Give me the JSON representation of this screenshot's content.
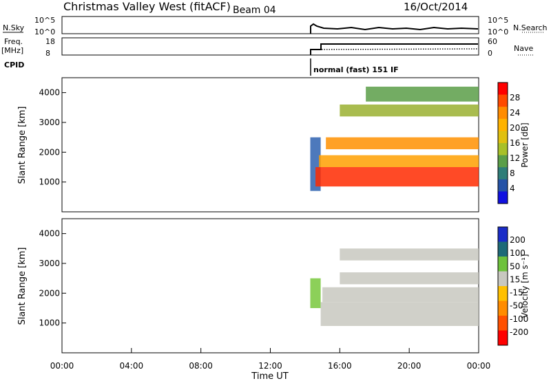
{
  "header": {
    "station": "Christmas Valley West (fitACF)",
    "beam": "Beam 04",
    "date": "16/Oct/2014"
  },
  "top_panels": {
    "nsky_label": "N.Sky",
    "nsky_ticks": [
      "10^5",
      "10^0"
    ],
    "nsearch_label": "N.Search",
    "nsearch_ticks": [
      "10^5",
      "10^0"
    ],
    "freq_label": "Freq.",
    "freq_unit": "[MHz]",
    "freq_ticks": [
      "18",
      "8"
    ],
    "nave_label": "Nave",
    "nave_ticks": [
      "60",
      "0"
    ],
    "cpid_label": "CPID",
    "cpid_text": "normal (fast) 151 IF"
  },
  "chart_data": [
    {
      "type": "heatmap",
      "name": "power",
      "ylabel": "Slant Range [km]",
      "xlabel": "",
      "yticks": [
        "1000",
        "2000",
        "3000",
        "4000"
      ],
      "ylim": [
        0,
        4500
      ],
      "xlim": [
        0,
        24
      ],
      "colorbar": {
        "label": "Power [dB]",
        "ticks": [
          "28",
          "24",
          "20",
          "16",
          "12",
          "8",
          "4"
        ],
        "colors": [
          "#ff0000",
          "#ff4a00",
          "#ff8c00",
          "#ffb300",
          "#e0c010",
          "#a8c028",
          "#5a9e48",
          "#2e7d78",
          "#2452a6",
          "#1010e0"
        ]
      },
      "bands": [
        {
          "x0": 14.3,
          "x1": 14.9,
          "y0": 700,
          "y1": 2500,
          "color": "#2e62b0"
        },
        {
          "x0": 14.6,
          "x1": 24.0,
          "y0": 850,
          "y1": 1500,
          "color": "#ff2a00"
        },
        {
          "x0": 14.8,
          "x1": 24.0,
          "y0": 1500,
          "y1": 1900,
          "color": "#ffa000"
        },
        {
          "x0": 15.2,
          "x1": 24.0,
          "y0": 2100,
          "y1": 2500,
          "color": "#ff9000"
        },
        {
          "x0": 16.0,
          "x1": 24.0,
          "y0": 3200,
          "y1": 3600,
          "color": "#9ab030"
        },
        {
          "x0": 17.5,
          "x1": 24.0,
          "y0": 3700,
          "y1": 4200,
          "color": "#5a9e48"
        }
      ]
    },
    {
      "type": "heatmap",
      "name": "velocity",
      "ylabel": "Slant Range [km]",
      "xlabel": "Time UT",
      "yticks": [
        "1000",
        "2000",
        "3000",
        "4000"
      ],
      "xticks": [
        "00:00",
        "04:00",
        "08:00",
        "12:00",
        "16:00",
        "20:00",
        "00:00"
      ],
      "ylim": [
        0,
        4500
      ],
      "xlim": [
        0,
        24
      ],
      "colorbar": {
        "label": "Velocity [m s⁻¹]",
        "ticks": [
          "200",
          "100",
          "50",
          "15",
          "-15",
          "-50",
          "-100",
          "-200"
        ],
        "colors": [
          "#1a2cc8",
          "#1e6a78",
          "#6ec23c",
          "#c8c8c0",
          "#ffc000",
          "#ff8c00",
          "#ff5000",
          "#ff0000"
        ]
      },
      "bands": [
        {
          "x0": 14.3,
          "x1": 14.9,
          "y0": 1500,
          "y1": 2500,
          "color": "#78c83c"
        },
        {
          "x0": 14.9,
          "x1": 24.0,
          "y0": 900,
          "y1": 1700,
          "color": "#c8c8c0"
        },
        {
          "x0": 15.0,
          "x1": 24.0,
          "y0": 1700,
          "y1": 2200,
          "color": "#c8c8c0"
        },
        {
          "x0": 16.0,
          "x1": 24.0,
          "y0": 2300,
          "y1": 2700,
          "color": "#c8c8c0"
        },
        {
          "x0": 16.0,
          "x1": 24.0,
          "y0": 3100,
          "y1": 3500,
          "color": "#c8c8c0"
        }
      ]
    }
  ]
}
